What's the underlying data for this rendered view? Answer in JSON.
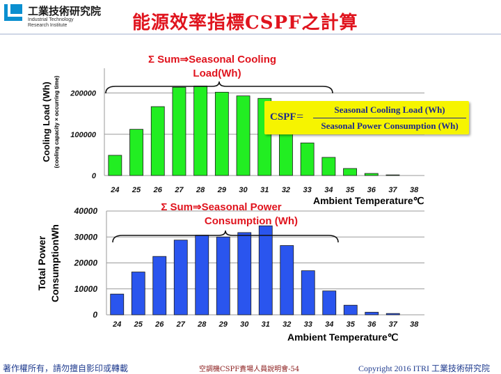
{
  "header": {
    "org_name_cn": "工業技術研究院",
    "org_name_en_line1": "Industrial Technology",
    "org_name_en_line2": "Research Institute",
    "title": "能源效率指標CSPF之計算",
    "colors": {
      "title": "#e0141e",
      "brand": "#0a8fd0"
    }
  },
  "formula": {
    "lhs": "CSPF",
    "equals": "=",
    "numerator": "Seasonal Cooling Load (Wh)",
    "denominator": "Seasonal Power Consumption (Wh)",
    "background": "#f6f400"
  },
  "footer": {
    "left": "著作權所有，請勿擅自影印或轉載",
    "center": "空調機CSPF責場人員說明會-54",
    "right": "Copyright 2016 ITRI 工業技術研究院"
  },
  "chart_data": [
    {
      "type": "bar",
      "color": "#22ee22",
      "annotation_line1": "Σ Sum⇒Seasonal Cooling",
      "annotation_line2": "Load(Wh)",
      "ylabel": "Cooling Load (Wh)",
      "ylabel_sub": "(cooling capacity × occurring time)",
      "xlabel": "Ambient Temperature℃",
      "ylim": [
        0,
        260000
      ],
      "yticks": [
        "0",
        "100000",
        "200000"
      ],
      "ytick_values": [
        0,
        100000,
        200000
      ],
      "grid": true,
      "categories": [
        "24",
        "25",
        "26",
        "27",
        "28",
        "29",
        "30",
        "31",
        "32",
        "33",
        "34",
        "35",
        "36",
        "37",
        "38"
      ],
      "values": [
        49000,
        112000,
        167000,
        214000,
        217000,
        202000,
        193000,
        187000,
        128000,
        79000,
        44000,
        17000,
        5000,
        1500,
        0
      ]
    },
    {
      "type": "bar",
      "color": "#2a55ee",
      "annotation_line1": "Σ Sum⇒Seasonal Power",
      "annotation_line2": "Consumption (Wh)",
      "ylabel": "Total Power",
      "ylabel_line2": "ConsumptionWh",
      "xlabel": "Ambient Temperature℃",
      "ylim": [
        0,
        40000
      ],
      "yticks": [
        "0",
        "10000",
        "20000",
        "30000",
        "40000"
      ],
      "ytick_values": [
        0,
        10000,
        20000,
        30000,
        40000
      ],
      "grid": true,
      "categories": [
        "24",
        "25",
        "26",
        "27",
        "28",
        "29",
        "30",
        "31",
        "32",
        "33",
        "34",
        "35",
        "36",
        "37",
        "38"
      ],
      "values": [
        8000,
        16500,
        22500,
        28800,
        30700,
        30000,
        31700,
        34300,
        26700,
        17000,
        9200,
        3700,
        1000,
        500,
        0
      ]
    }
  ]
}
